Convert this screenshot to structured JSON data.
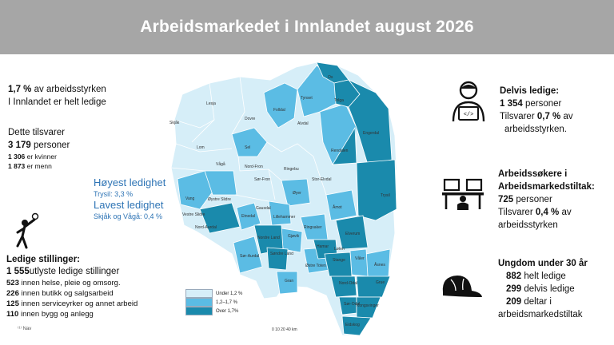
{
  "header": {
    "title": "Arbeidsmarkedet i Innlandet august 2026"
  },
  "summary": {
    "pct_value": "1,7 %",
    "pct_rest": " av arbeidsstyrken",
    "pct_line2": "I Innlandet er helt ledige",
    "tilsvarer": "Dette tilsvarer",
    "persons_value": "3 179",
    "persons_rest": " personer",
    "women_value": "1 306",
    "women_rest": " er kvinner",
    "men_value": "1 873",
    "men_rest": " er menn"
  },
  "highlight": {
    "highest_label": "Høyest ledighet",
    "highest_value": "Trysil: 3,3 %",
    "lowest_label": "Lavest ledighet",
    "lowest_value": "Skjåk og Vågå: 0,4 %"
  },
  "stillinger": {
    "title": "Ledige stillinger:",
    "total_value": "1 555",
    "total_rest": "utlyste ledige stillinger",
    "rows": [
      {
        "value": "523",
        "text": " innen helse, pleie og omsorg."
      },
      {
        "value": "226",
        "text": " innen butikk og salgsarbeid"
      },
      {
        "value": "125",
        "text": " innen serviceyrker og annet arbeid"
      },
      {
        "value": "110",
        "text": " innen bygg og anlegg"
      }
    ]
  },
  "source": "Nav",
  "delvis": {
    "title": "Delvis ledige:",
    "value": "1 354",
    "rest": " personer",
    "line3_pre": "Tilsvarer ",
    "line3_value": "0,7 %",
    "line3_post": " av",
    "line4": "arbeidsstyrken."
  },
  "tiltak": {
    "title1": "Arbeidssøkere i",
    "title2": "Arbeidsmarkedstiltak:",
    "value": "725",
    "rest": " personer",
    "line4_pre": "Tilsvarer ",
    "line4_value": "0,4 %",
    "line4_post": " av",
    "line5": "arbeidsstyrken"
  },
  "ungdom": {
    "title": "Ungdom under 30 år",
    "helt_value": "882",
    "helt_rest": " helt ledige",
    "delvis_value": "299",
    "delvis_rest": " delvis ledige",
    "tiltak_value": "209",
    "tiltak_rest": " deltar i",
    "tiltak_line2": "arbeidsmarkedstiltak"
  },
  "legend": {
    "items": [
      {
        "label": "Under 1,2 %",
        "color": "#d6eef8"
      },
      {
        "label": "1,2–1,7 %",
        "color": "#5bbce4"
      },
      {
        "label": "Over 1,7%",
        "color": "#1a8aac"
      }
    ]
  },
  "map": {
    "colors": {
      "low": "#d6eef8",
      "mid": "#5bbce4",
      "high": "#1a8aac"
    },
    "municipalities": {
      "loja": "Lesja",
      "dovre": "Dovre",
      "folldal": "Folldal",
      "tynset": "Tynset",
      "os": "Os",
      "tolga": "Tolga",
      "alvdal": "Alvdal",
      "rendalen": "Rendalen",
      "engerdal": "Engerdal",
      "skjak": "Skjåk",
      "lom": "Lom",
      "sel": "Sel",
      "vaga": "Vågå",
      "nordfron": "Nord-Fron",
      "ringebu": "Ringebu",
      "storelvdal": "Stor-Elvdal",
      "sorfron": "Sør-Fron",
      "oyer": "Øyer",
      "amot": "Åmot",
      "trysil": "Trysil",
      "vang": "Vang",
      "oystreslidre": "Øystre Slidre",
      "gausdal": "Gausdal",
      "vestreslidre": "Vestre Slidre",
      "etnedal": "Etnedal",
      "lillehammer": "Lillehammer",
      "ringsaker": "Ringsaker",
      "nordaurdal": "Nord-Aurdal",
      "nordreland": "Nordre Land",
      "gjovik": "Gjøvik",
      "elverum": "Elverum",
      "sondreland": "Søndre Land",
      "hamar": "Hamar",
      "stange": "Stange",
      "loten": "Løten",
      "vaaler": "Våler",
      "asnes": "Åsnes",
      "ostretoten": "Østre Toten",
      "sorurdal": "Sør-Aurdal",
      "gran": "Gran",
      "nordodal": "Nord-Odal",
      "grue": "Grue",
      "sorodal": "Sør-Odal",
      "kongsvinger": "Kongsvinger",
      "eidskog": "Eidskog"
    },
    "scale_text": "0   10   20   40 km"
  }
}
